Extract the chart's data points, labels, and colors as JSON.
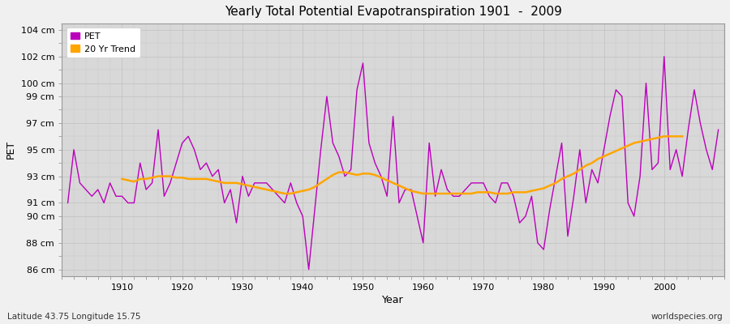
{
  "title": "Yearly Total Potential Evapotranspiration 1901  -  2009",
  "xlabel": "Year",
  "ylabel": "PET",
  "subtitle_left": "Latitude 43.75 Longitude 15.75",
  "subtitle_right": "worldspecies.org",
  "pet_color": "#bb00bb",
  "trend_color": "#FFA500",
  "fig_bg_color": "#f0f0f0",
  "plot_bg_color": "#d8d8d8",
  "grid_color": "#c0c0c0",
  "ylim": [
    85.5,
    104.5
  ],
  "yticks": [
    86,
    88,
    90,
    91,
    93,
    95,
    97,
    99,
    100,
    102,
    104
  ],
  "ytick_labels": [
    "86 cm",
    "88 cm",
    "90 cm",
    "91 cm",
    "93 cm",
    "95 cm",
    "97 cm",
    "99 cm",
    "100 cm",
    "102 cm",
    "104 cm"
  ],
  "xlim": [
    1900,
    2010
  ],
  "xticks": [
    1910,
    1920,
    1930,
    1940,
    1950,
    1960,
    1970,
    1980,
    1990,
    2000
  ],
  "years": [
    1901,
    1902,
    1903,
    1904,
    1905,
    1906,
    1907,
    1908,
    1909,
    1910,
    1911,
    1912,
    1913,
    1914,
    1915,
    1916,
    1917,
    1918,
    1919,
    1920,
    1921,
    1922,
    1923,
    1924,
    1925,
    1926,
    1927,
    1928,
    1929,
    1930,
    1931,
    1932,
    1933,
    1934,
    1935,
    1936,
    1937,
    1938,
    1939,
    1940,
    1941,
    1942,
    1943,
    1944,
    1945,
    1946,
    1947,
    1948,
    1949,
    1950,
    1951,
    1952,
    1953,
    1954,
    1955,
    1956,
    1957,
    1958,
    1959,
    1960,
    1961,
    1962,
    1963,
    1964,
    1965,
    1966,
    1967,
    1968,
    1969,
    1970,
    1971,
    1972,
    1973,
    1974,
    1975,
    1976,
    1977,
    1978,
    1979,
    1980,
    1981,
    1982,
    1983,
    1984,
    1985,
    1986,
    1987,
    1988,
    1989,
    1990,
    1991,
    1992,
    1993,
    1994,
    1995,
    1996,
    1997,
    1998,
    1999,
    2000,
    2001,
    2002,
    2003,
    2004,
    2005,
    2006,
    2007,
    2008,
    2009
  ],
  "pet": [
    91.0,
    95.0,
    92.5,
    92.0,
    91.5,
    92.0,
    91.0,
    92.5,
    91.5,
    91.5,
    91.0,
    91.0,
    94.0,
    92.0,
    92.5,
    96.5,
    91.5,
    92.5,
    94.0,
    95.5,
    96.0,
    95.0,
    93.5,
    94.0,
    93.0,
    93.5,
    91.0,
    92.0,
    89.5,
    93.0,
    91.5,
    92.5,
    92.5,
    92.5,
    92.0,
    91.5,
    91.0,
    92.5,
    91.0,
    90.0,
    86.0,
    90.5,
    95.0,
    99.0,
    95.5,
    94.5,
    93.0,
    93.5,
    99.5,
    101.5,
    95.5,
    94.0,
    93.0,
    91.5,
    97.5,
    91.0,
    92.0,
    92.0,
    90.0,
    88.0,
    95.5,
    91.5,
    93.5,
    92.0,
    91.5,
    91.5,
    92.0,
    92.5,
    92.5,
    92.5,
    91.5,
    91.0,
    92.5,
    92.5,
    91.5,
    89.5,
    90.0,
    91.5,
    88.0,
    87.5,
    90.5,
    93.0,
    95.5,
    88.5,
    91.5,
    95.0,
    91.0,
    93.5,
    92.5,
    95.0,
    97.5,
    99.5,
    99.0,
    91.0,
    90.0,
    93.0,
    100.0,
    93.5,
    94.0,
    102.0,
    93.5,
    95.0,
    93.0,
    96.5,
    99.5,
    97.0,
    95.0,
    93.5,
    96.5
  ],
  "trend": [
    null,
    null,
    null,
    null,
    null,
    null,
    null,
    null,
    null,
    92.8,
    92.7,
    92.6,
    92.8,
    92.8,
    92.9,
    93.0,
    93.0,
    93.0,
    92.9,
    92.9,
    92.8,
    92.8,
    92.8,
    92.8,
    92.7,
    92.6,
    92.5,
    92.5,
    92.5,
    92.4,
    92.3,
    92.2,
    92.1,
    92.0,
    91.9,
    91.8,
    91.7,
    91.7,
    91.8,
    91.9,
    92.0,
    92.2,
    92.5,
    92.8,
    93.1,
    93.3,
    93.3,
    93.2,
    93.1,
    93.2,
    93.2,
    93.1,
    92.9,
    92.7,
    92.5,
    92.3,
    92.1,
    91.9,
    91.8,
    91.7,
    91.7,
    91.7,
    91.7,
    91.7,
    91.7,
    91.7,
    91.7,
    91.7,
    91.8,
    91.8,
    91.8,
    91.7,
    91.7,
    91.7,
    91.8,
    91.8,
    91.8,
    91.9,
    92.0,
    92.1,
    92.3,
    92.5,
    92.8,
    93.0,
    93.2,
    93.5,
    93.8,
    94.0,
    94.3,
    94.5,
    94.7,
    94.9,
    95.1,
    95.3,
    95.5,
    95.6,
    95.7,
    95.8,
    95.9,
    96.0,
    96.0,
    96.0,
    96.0,
    null,
    null,
    null,
    null,
    null
  ]
}
